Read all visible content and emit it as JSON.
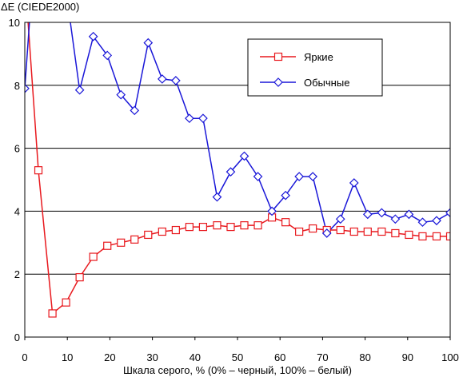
{
  "chart_data": {
    "type": "line",
    "ylabel": "ΔE (CIEDE2000)",
    "xlabel": "Шкала серого, % (0% – черный, 100% – белый)",
    "xlim": [
      0,
      100
    ],
    "ylim": [
      0,
      10
    ],
    "x_ticks": [
      0,
      10,
      20,
      30,
      40,
      50,
      60,
      70,
      80,
      90,
      100
    ],
    "y_ticks": [
      0,
      2,
      4,
      6,
      8,
      10
    ],
    "grid": "horizontal",
    "legend_position": "top-right",
    "series": [
      {
        "name": "Яркие",
        "color": "#e8191e",
        "marker": "square",
        "x": [
          0,
          3.2,
          6.5,
          9.7,
          12.9,
          16.1,
          19.4,
          22.6,
          25.8,
          29,
          32.3,
          35.5,
          38.7,
          41.9,
          45.2,
          48.4,
          51.6,
          54.8,
          58.1,
          61.3,
          64.5,
          67.7,
          71,
          74.2,
          77.4,
          80.6,
          83.9,
          87.1,
          90.3,
          93.5,
          96.8,
          100
        ],
        "y": [
          11.5,
          5.3,
          0.75,
          1.1,
          1.9,
          2.55,
          2.9,
          3.0,
          3.1,
          3.25,
          3.35,
          3.4,
          3.5,
          3.5,
          3.55,
          3.5,
          3.55,
          3.55,
          3.8,
          3.65,
          3.35,
          3.45,
          3.4,
          3.4,
          3.35,
          3.35,
          3.35,
          3.3,
          3.25,
          3.2,
          3.2,
          3.2
        ]
      },
      {
        "name": "Обычные",
        "color": "#1a17d8",
        "marker": "diamond",
        "x": [
          0,
          3.2,
          9.7,
          12.9,
          16.1,
          19.4,
          22.6,
          25.8,
          29,
          32.3,
          35.5,
          38.7,
          41.9,
          45.2,
          48.4,
          51.6,
          54.8,
          58.1,
          61.3,
          64.5,
          67.7,
          71,
          74.2,
          77.4,
          80.6,
          83.9,
          87.1,
          90.3,
          93.5,
          96.8,
          100
        ],
        "y": [
          7.9,
          14,
          11,
          7.85,
          9.55,
          8.95,
          7.7,
          7.2,
          9.35,
          8.2,
          8.15,
          6.95,
          6.95,
          4.45,
          5.25,
          5.75,
          5.1,
          4.0,
          4.5,
          5.1,
          5.1,
          3.3,
          3.75,
          4.9,
          3.9,
          3.95,
          3.75,
          3.9,
          3.65,
          3.7,
          3.95
        ]
      }
    ]
  }
}
